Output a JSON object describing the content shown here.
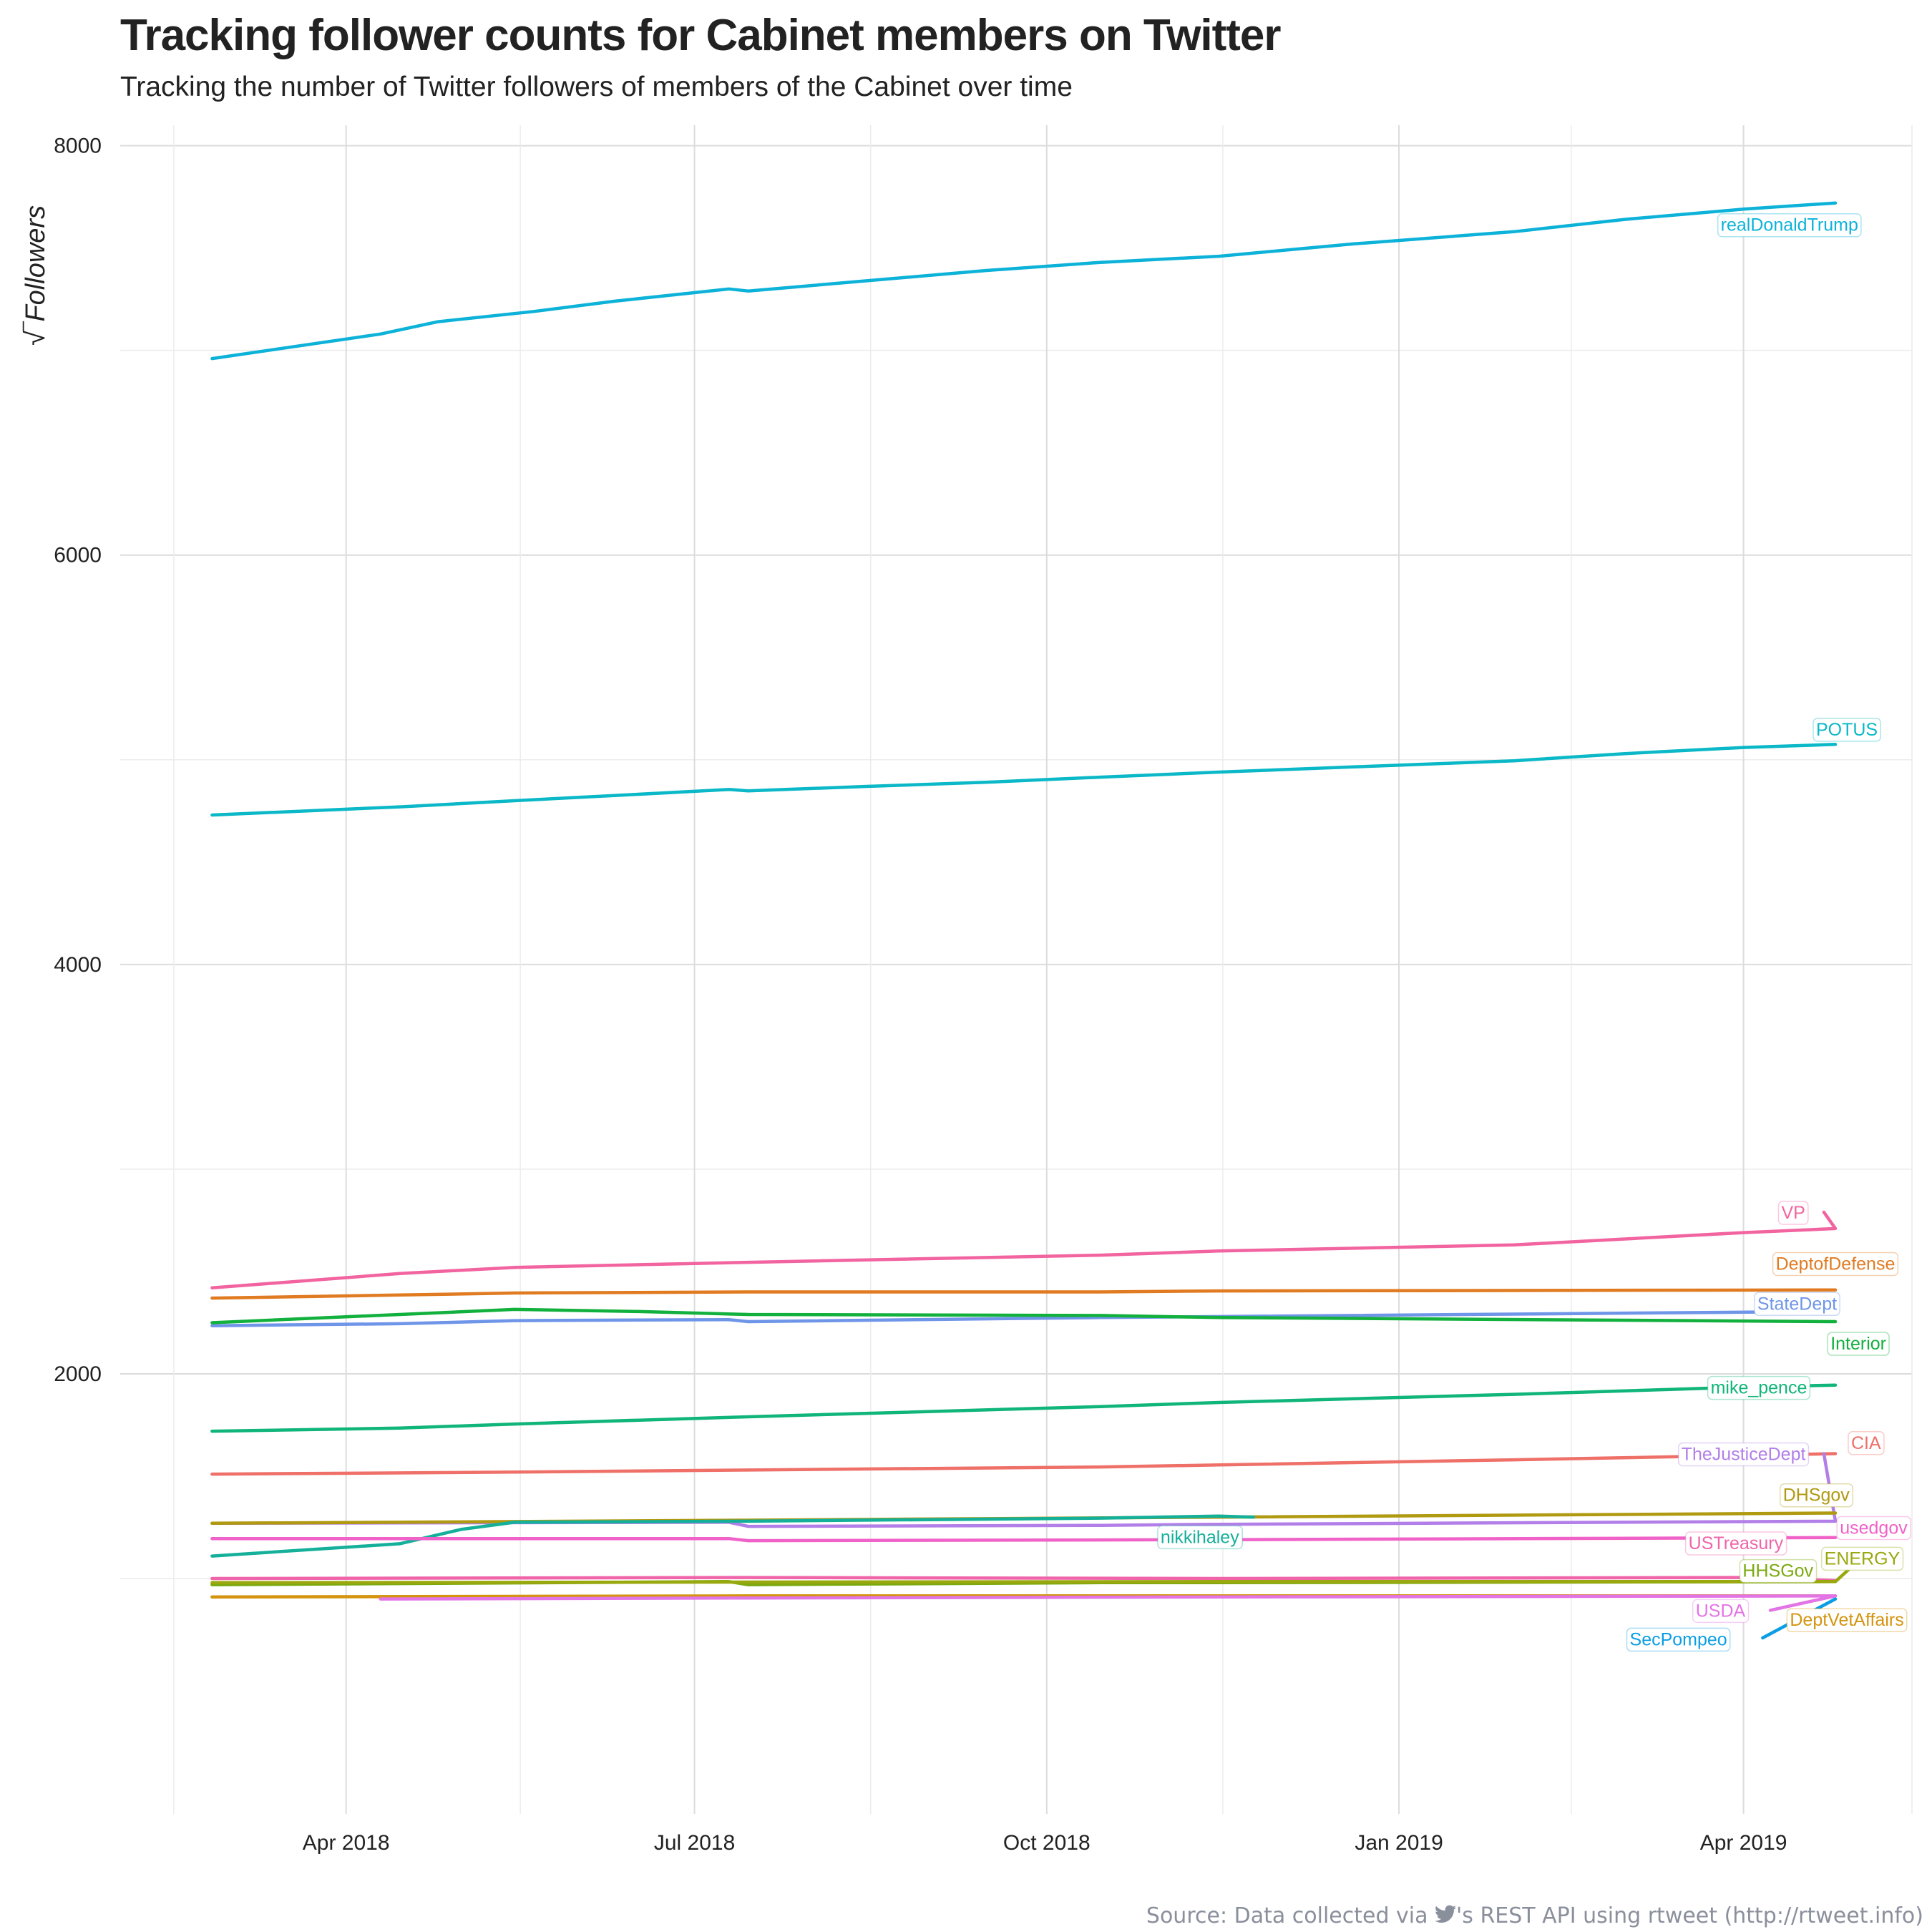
{
  "title": "Tracking follower counts for Cabinet members on Twitter",
  "subtitle": "Tracking the number of Twitter followers of members of the Cabinet over time",
  "caption_before": "Source: Data collected via ",
  "caption_after": "'s REST API using rtweet (http://rtweet.info)",
  "caption_icon": "twitter-bird-icon",
  "chart_data": {
    "type": "line",
    "title": "Tracking follower counts for Cabinet members on Twitter",
    "subtitle": "Tracking the number of Twitter followers of members of the Cabinet over time",
    "xlabel": "",
    "ylabel": "√‾Followers",
    "x_domain": [
      "2018-02-01",
      "2019-05-15"
    ],
    "ylim": [
      -150,
      8100
    ],
    "y_ticks": [
      2000,
      4000,
      6000,
      8000
    ],
    "x_ticks": [
      {
        "date": "2018-04-01",
        "label": "Apr 2018"
      },
      {
        "date": "2018-07-01",
        "label": "Jul 2018"
      },
      {
        "date": "2018-10-01",
        "label": "Oct 2018"
      },
      {
        "date": "2019-01-01",
        "label": "Jan 2019"
      },
      {
        "date": "2019-04-01",
        "label": "Apr 2019"
      }
    ],
    "grid": true,
    "legend": "none (direct labels)",
    "series": [
      {
        "name": "realDonaldTrump",
        "color": "#0db2d9",
        "points": [
          [
            "2018-02-25",
            6960
          ],
          [
            "2018-04-10",
            7080
          ],
          [
            "2018-04-25",
            7140
          ],
          [
            "2018-05-20",
            7190
          ],
          [
            "2018-06-10",
            7240
          ],
          [
            "2018-07-10",
            7300
          ],
          [
            "2018-07-15",
            7290
          ],
          [
            "2018-08-15",
            7340
          ],
          [
            "2018-09-15",
            7390
          ],
          [
            "2018-10-15",
            7430
          ],
          [
            "2018-11-15",
            7460
          ],
          [
            "2018-12-20",
            7520
          ],
          [
            "2019-01-31",
            7580
          ],
          [
            "2019-03-01",
            7640
          ],
          [
            "2019-04-01",
            7690
          ],
          [
            "2019-04-25",
            7720
          ]
        ],
        "label": {
          "text": "realDonaldTrump",
          "at": [
            "2019-04-13",
            7615
          ]
        }
      },
      {
        "name": "POTUS",
        "color": "#0ab8c7",
        "points": [
          [
            "2018-02-25",
            4730
          ],
          [
            "2018-04-15",
            4770
          ],
          [
            "2018-05-15",
            4800
          ],
          [
            "2018-06-15",
            4830
          ],
          [
            "2018-07-10",
            4855
          ],
          [
            "2018-07-15",
            4848
          ],
          [
            "2018-08-15",
            4870
          ],
          [
            "2018-09-15",
            4890
          ],
          [
            "2018-10-15",
            4915
          ],
          [
            "2018-11-15",
            4940
          ],
          [
            "2018-12-20",
            4965
          ],
          [
            "2019-01-31",
            4995
          ],
          [
            "2019-03-01",
            5030
          ],
          [
            "2019-04-01",
            5060
          ],
          [
            "2019-04-25",
            5075
          ]
        ],
        "label": {
          "text": "POTUS",
          "at": [
            "2019-04-28",
            5150
          ]
        }
      },
      {
        "name": "VP",
        "color": "#f264a0",
        "points": [
          [
            "2018-02-25",
            2420
          ],
          [
            "2018-04-15",
            2490
          ],
          [
            "2018-05-15",
            2520
          ],
          [
            "2018-07-15",
            2545
          ],
          [
            "2018-10-15",
            2580
          ],
          [
            "2018-11-15",
            2600
          ],
          [
            "2019-01-31",
            2630
          ],
          [
            "2019-04-01",
            2690
          ],
          [
            "2019-04-25",
            2710
          ],
          [
            "2019-04-22",
            2790
          ]
        ],
        "label": {
          "text": "VP",
          "at": [
            "2019-04-14",
            2790
          ]
        }
      },
      {
        "name": "DeptofDefense",
        "color": "#e07b22",
        "points": [
          [
            "2018-02-25",
            2370
          ],
          [
            "2018-04-15",
            2385
          ],
          [
            "2018-05-15",
            2395
          ],
          [
            "2018-07-15",
            2400
          ],
          [
            "2018-10-15",
            2400
          ],
          [
            "2018-11-15",
            2405
          ],
          [
            "2019-04-25",
            2410
          ]
        ],
        "label": {
          "text": "DeptofDefense",
          "at": [
            "2019-04-25",
            2540
          ]
        }
      },
      {
        "name": "StateDept",
        "color": "#6f95e8",
        "points": [
          [
            "2018-02-25",
            2235
          ],
          [
            "2018-04-15",
            2245
          ],
          [
            "2018-05-15",
            2260
          ],
          [
            "2018-07-10",
            2265
          ],
          [
            "2018-07-15",
            2255
          ],
          [
            "2018-10-15",
            2275
          ],
          [
            "2018-11-15",
            2280
          ],
          [
            "2019-04-25",
            2305
          ]
        ],
        "label": {
          "text": "StateDept",
          "at": [
            "2019-04-15",
            2345
          ]
        }
      },
      {
        "name": "Interior",
        "color": "#12b03d",
        "points": [
          [
            "2018-02-25",
            2250
          ],
          [
            "2018-04-15",
            2290
          ],
          [
            "2018-05-15",
            2315
          ],
          [
            "2018-06-15",
            2305
          ],
          [
            "2018-07-15",
            2290
          ],
          [
            "2018-10-15",
            2285
          ],
          [
            "2018-11-15",
            2275
          ],
          [
            "2019-04-25",
            2255
          ]
        ],
        "label": {
          "text": "Interior",
          "at": [
            "2019-05-01",
            2150
          ]
        }
      },
      {
        "name": "mike_pence",
        "color": "#10b579",
        "points": [
          [
            "2018-02-25",
            1720
          ],
          [
            "2018-04-15",
            1735
          ],
          [
            "2018-05-15",
            1755
          ],
          [
            "2018-07-15",
            1790
          ],
          [
            "2018-10-15",
            1840
          ],
          [
            "2018-11-15",
            1860
          ],
          [
            "2019-01-31",
            1900
          ],
          [
            "2019-04-01",
            1935
          ],
          [
            "2019-04-25",
            1945
          ]
        ],
        "label": {
          "text": "mike_pence",
          "at": [
            "2019-04-05",
            1935
          ]
        }
      },
      {
        "name": "CIA",
        "color": "#ee7068",
        "points": [
          [
            "2018-02-25",
            1510
          ],
          [
            "2018-05-15",
            1520
          ],
          [
            "2018-07-15",
            1530
          ],
          [
            "2018-10-15",
            1545
          ],
          [
            "2018-11-15",
            1555
          ],
          [
            "2019-01-31",
            1580
          ],
          [
            "2019-04-25",
            1610
          ]
        ],
        "label": {
          "text": "CIA",
          "at": [
            "2019-05-03",
            1665
          ]
        }
      },
      {
        "name": "TheJusticeDept",
        "color": "#b27ee8",
        "points": [
          [
            "2018-02-25",
            1270
          ],
          [
            "2018-07-10",
            1275
          ],
          [
            "2018-07-15",
            1255
          ],
          [
            "2018-10-15",
            1260
          ],
          [
            "2018-11-15",
            1265
          ],
          [
            "2019-04-25",
            1280
          ],
          [
            "2019-04-22",
            1610
          ]
        ],
        "label": {
          "text": "TheJusticeDept",
          "at": [
            "2019-04-01",
            1610
          ]
        }
      },
      {
        "name": "DHSgov",
        "color": "#b09a12",
        "points": [
          [
            "2018-02-25",
            1270
          ],
          [
            "2018-07-15",
            1285
          ],
          [
            "2018-11-15",
            1300
          ],
          [
            "2019-04-25",
            1320
          ]
        ],
        "label": {
          "text": "DHSgov",
          "at": [
            "2019-04-20",
            1410
          ]
        }
      },
      {
        "name": "nikkihaley",
        "color": "#15b09a",
        "points": [
          [
            "2018-02-25",
            1110
          ],
          [
            "2018-04-15",
            1170
          ],
          [
            "2018-05-01",
            1240
          ],
          [
            "2018-05-15",
            1275
          ],
          [
            "2018-07-15",
            1280
          ],
          [
            "2018-10-15",
            1295
          ],
          [
            "2018-11-15",
            1305
          ],
          [
            "2018-11-24",
            1300
          ]
        ],
        "label": {
          "text": "nikkihaley",
          "at": [
            "2018-11-10",
            1205
          ]
        }
      },
      {
        "name": "usedgov",
        "color": "#f062c8",
        "points": [
          [
            "2018-02-25",
            1195
          ],
          [
            "2018-07-10",
            1195
          ],
          [
            "2018-07-15",
            1185
          ],
          [
            "2018-11-15",
            1190
          ],
          [
            "2019-04-25",
            1200
          ]
        ],
        "label": {
          "text": "usedgov",
          "at": [
            "2019-05-05",
            1250
          ]
        }
      },
      {
        "name": "USTreasury",
        "color": "#f064a9",
        "points": [
          [
            "2018-02-25",
            1000
          ],
          [
            "2018-07-15",
            1005
          ],
          [
            "2018-11-15",
            1000
          ],
          [
            "2019-04-05",
            1005
          ],
          [
            "2019-04-25",
            990
          ]
        ],
        "label": {
          "text": "USTreasury",
          "at": [
            "2019-03-30",
            1175
          ]
        }
      },
      {
        "name": "HHSGov",
        "color": "#7aa90f",
        "points": [
          [
            "2018-02-25",
            970
          ],
          [
            "2018-07-10",
            985
          ],
          [
            "2018-07-15",
            970
          ],
          [
            "2018-10-15",
            980
          ],
          [
            "2018-11-15",
            980
          ],
          [
            "2019-04-25",
            985
          ]
        ],
        "label": {
          "text": "HHSGov",
          "at": [
            "2019-04-10",
            1040
          ]
        }
      },
      {
        "name": "ENERGY",
        "color": "#99a80e",
        "points": [
          [
            "2018-02-25",
            980
          ],
          [
            "2018-11-15",
            985
          ],
          [
            "2019-04-20",
            985
          ],
          [
            "2019-04-25",
            985
          ],
          [
            "2019-04-30",
            1070
          ]
        ],
        "label": {
          "text": "ENERGY",
          "at": [
            "2019-05-02",
            1100
          ]
        }
      },
      {
        "name": "DeptVetAffairs",
        "color": "#d4940f",
        "points": [
          [
            "2018-02-25",
            910
          ],
          [
            "2018-07-15",
            915
          ],
          [
            "2018-11-15",
            915
          ],
          [
            "2019-04-25",
            915
          ]
        ],
        "label": {
          "text": "DeptVetAffairs",
          "at": [
            "2019-04-28",
            800
          ]
        }
      },
      {
        "name": "USDA",
        "color": "#e374e6",
        "points": [
          [
            "2018-04-10",
            900
          ],
          [
            "2018-07-15",
            905
          ],
          [
            "2018-11-15",
            910
          ],
          [
            "2019-04-25",
            915
          ],
          [
            "2019-04-08",
            845
          ]
        ],
        "label": {
          "text": "USDA",
          "at": [
            "2019-03-26",
            845
          ]
        }
      },
      {
        "name": "SecPompeo",
        "color": "#0b9ee4",
        "points": [
          [
            "2019-04-25",
            900
          ],
          [
            "2019-04-06",
            710
          ]
        ],
        "label": {
          "text": "SecPompeo",
          "at": [
            "2019-03-15",
            705
          ]
        }
      }
    ]
  }
}
